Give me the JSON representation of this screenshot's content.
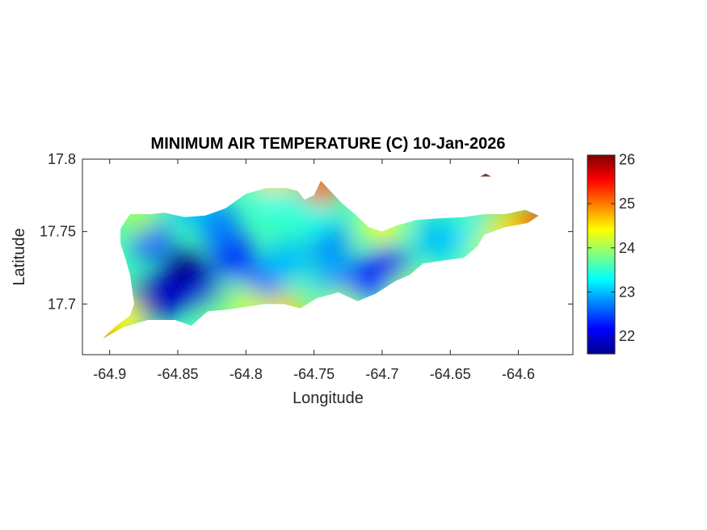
{
  "chart_data": {
    "type": "heatmap",
    "title": "MINIMUM AIR TEMPERATURE (C) 10-Jan-2026",
    "xlabel": "Longitude",
    "ylabel": "Latitude",
    "xlim": [
      -64.92,
      -64.56
    ],
    "ylim": [
      17.665,
      17.8
    ],
    "x_ticks": [
      -64.9,
      -64.85,
      -64.8,
      -64.75,
      -64.7,
      -64.65,
      -64.6
    ],
    "x_tick_labels": [
      "-64.9",
      "-64.85",
      "-64.8",
      "-64.75",
      "-64.7",
      "-64.65",
      "-64.6"
    ],
    "y_ticks": [
      17.7,
      17.75,
      17.8
    ],
    "y_tick_labels": [
      "17.7",
      "17.75",
      "17.8"
    ],
    "colorbar": {
      "colormap": "jet",
      "range": [
        21.6,
        26.1
      ],
      "ticks": [
        22,
        23,
        24,
        25,
        26
      ],
      "tick_labels": [
        "22",
        "23",
        "24",
        "25",
        "26"
      ]
    },
    "grid": false,
    "background_value": 23.6,
    "temperature_features": [
      {
        "lon": -64.845,
        "lat": 17.723,
        "value": 21.6
      },
      {
        "lon": -64.875,
        "lat": 17.7,
        "value": 21.8
      },
      {
        "lon": -64.86,
        "lat": 17.705,
        "value": 21.9
      },
      {
        "lon": -64.83,
        "lat": 17.705,
        "value": 22.0
      },
      {
        "lon": -64.81,
        "lat": 17.735,
        "value": 22.3
      },
      {
        "lon": -64.87,
        "lat": 17.745,
        "value": 22.5
      },
      {
        "lon": -64.82,
        "lat": 17.755,
        "value": 22.7
      },
      {
        "lon": -64.79,
        "lat": 17.715,
        "value": 22.6
      },
      {
        "lon": -64.77,
        "lat": 17.73,
        "value": 23.0
      },
      {
        "lon": -64.74,
        "lat": 17.745,
        "value": 22.7
      },
      {
        "lon": -64.735,
        "lat": 17.72,
        "value": 22.9
      },
      {
        "lon": -64.695,
        "lat": 17.725,
        "value": 22.1
      },
      {
        "lon": -64.715,
        "lat": 17.715,
        "value": 22.3
      },
      {
        "lon": -64.66,
        "lat": 17.745,
        "value": 23.0
      },
      {
        "lon": -64.63,
        "lat": 17.745,
        "value": 23.2
      },
      {
        "lon": -64.78,
        "lat": 17.775,
        "value": 23.3
      },
      {
        "lon": -64.75,
        "lat": 17.76,
        "value": 23.4
      },
      {
        "lon": -64.84,
        "lat": 17.77,
        "value": 23.0
      },
      {
        "lon": -64.9,
        "lat": 17.68,
        "value": 25.4
      },
      {
        "lon": -64.89,
        "lat": 17.69,
        "value": 24.4
      },
      {
        "lon": -64.745,
        "lat": 17.783,
        "value": 25.1
      },
      {
        "lon": -64.78,
        "lat": 17.79,
        "value": 24.6
      },
      {
        "lon": -64.59,
        "lat": 17.755,
        "value": 25.3
      },
      {
        "lon": -64.61,
        "lat": 17.752,
        "value": 24.6
      },
      {
        "lon": -64.77,
        "lat": 17.693,
        "value": 24.6
      },
      {
        "lon": -64.8,
        "lat": 17.697,
        "value": 24.2
      },
      {
        "lon": -64.73,
        "lat": 17.697,
        "value": 24.0
      },
      {
        "lon": -64.88,
        "lat": 17.762,
        "value": 24.0
      },
      {
        "lon": -64.68,
        "lat": 17.708,
        "value": 24.0
      },
      {
        "lon": -64.62,
        "lat": 17.738,
        "value": 24.1
      },
      {
        "lon": -64.7,
        "lat": 17.756,
        "value": 24.4
      },
      {
        "lon": -64.82,
        "lat": 17.69,
        "value": 23.8
      },
      {
        "lon": -64.624,
        "lat": 17.788,
        "value": 26.0
      }
    ],
    "island_outline": [
      [
        -64.902,
        17.679
      ],
      [
        -64.895,
        17.685
      ],
      [
        -64.885,
        17.692
      ],
      [
        -64.882,
        17.7
      ],
      [
        -64.885,
        17.72
      ],
      [
        -64.888,
        17.73
      ],
      [
        -64.892,
        17.742
      ],
      [
        -64.892,
        17.752
      ],
      [
        -64.885,
        17.762
      ],
      [
        -64.87,
        17.762
      ],
      [
        -64.86,
        17.763
      ],
      [
        -64.845,
        17.76
      ],
      [
        -64.83,
        17.761
      ],
      [
        -64.815,
        17.766
      ],
      [
        -64.8,
        17.776
      ],
      [
        -64.785,
        17.78
      ],
      [
        -64.77,
        17.78
      ],
      [
        -64.762,
        17.778
      ],
      [
        -64.757,
        17.772
      ],
      [
        -64.75,
        17.775
      ],
      [
        -64.745,
        17.785
      ],
      [
        -64.738,
        17.778
      ],
      [
        -64.73,
        17.77
      ],
      [
        -64.72,
        17.762
      ],
      [
        -64.71,
        17.753
      ],
      [
        -64.7,
        17.75
      ],
      [
        -64.69,
        17.754
      ],
      [
        -64.675,
        17.758
      ],
      [
        -64.66,
        17.759
      ],
      [
        -64.64,
        17.76
      ],
      [
        -64.625,
        17.762
      ],
      [
        -64.61,
        17.762
      ],
      [
        -64.595,
        17.765
      ],
      [
        -64.585,
        17.761
      ],
      [
        -64.593,
        17.756
      ],
      [
        -64.61,
        17.753
      ],
      [
        -64.625,
        17.748
      ],
      [
        -64.63,
        17.74
      ],
      [
        -64.64,
        17.732
      ],
      [
        -64.655,
        17.73
      ],
      [
        -64.67,
        17.728
      ],
      [
        -64.68,
        17.72
      ],
      [
        -64.69,
        17.716
      ],
      [
        -64.705,
        17.707
      ],
      [
        -64.718,
        17.702
      ],
      [
        -64.732,
        17.708
      ],
      [
        -64.748,
        17.704
      ],
      [
        -64.76,
        17.697
      ],
      [
        -64.772,
        17.7
      ],
      [
        -64.787,
        17.7
      ],
      [
        -64.8,
        17.698
      ],
      [
        -64.815,
        17.696
      ],
      [
        -64.828,
        17.695
      ],
      [
        -64.84,
        17.685
      ],
      [
        -64.852,
        17.689
      ],
      [
        -64.872,
        17.689
      ],
      [
        -64.89,
        17.684
      ],
      [
        -64.905,
        17.676
      ]
    ],
    "small_cay_outline": [
      [
        -64.628,
        17.788
      ],
      [
        -64.624,
        17.79
      ],
      [
        -64.62,
        17.788
      ]
    ]
  }
}
